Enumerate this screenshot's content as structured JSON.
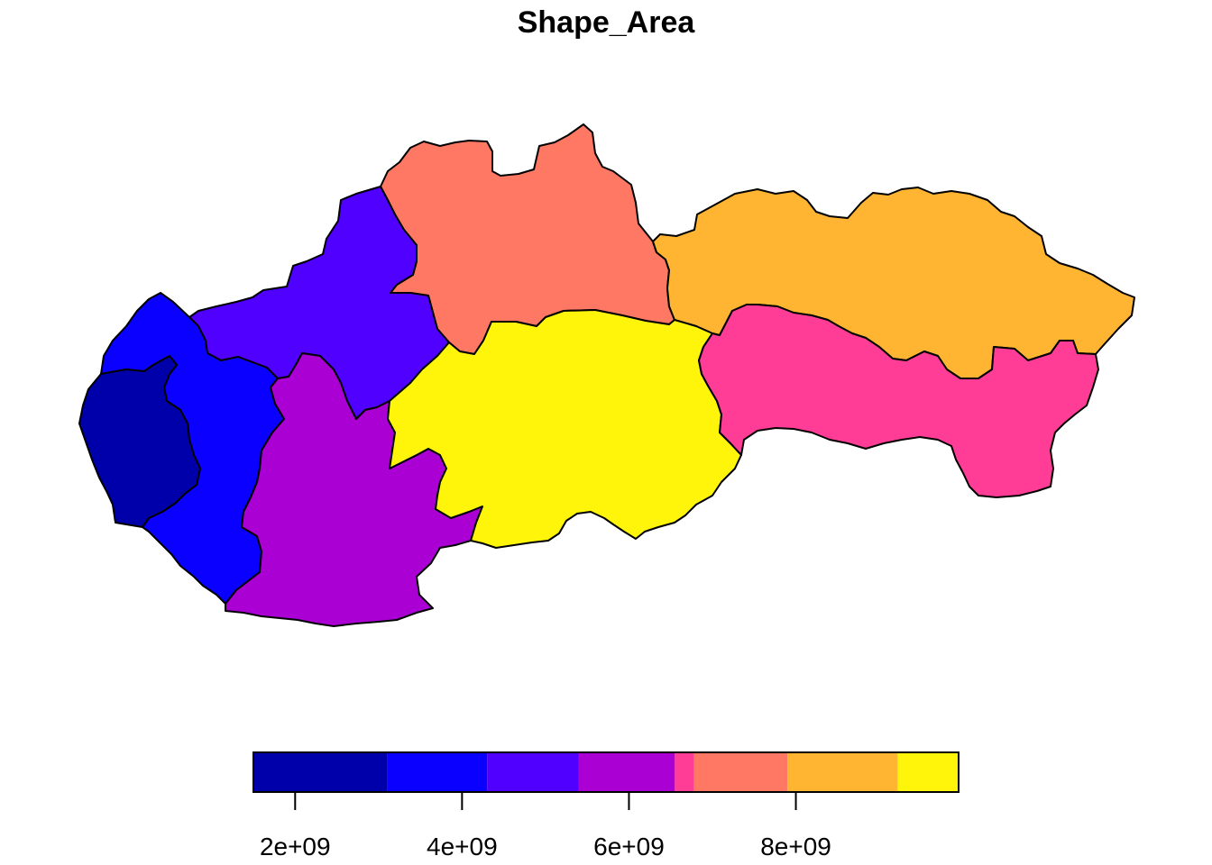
{
  "title": "Shape_Area",
  "regions": [
    {
      "id": "bratislava",
      "value": 2052000000,
      "color": "#0000AA"
    },
    {
      "id": "trnava",
      "value": 4148000000,
      "color": "#0A00FF"
    },
    {
      "id": "trencin",
      "value": 4502000000,
      "color": "#5000FF"
    },
    {
      "id": "nitra",
      "value": 6344000000,
      "color": "#AA00D4"
    },
    {
      "id": "zilina",
      "value": 6809000000,
      "color": "#FF7864"
    },
    {
      "id": "kosice",
      "value": 6755000000,
      "color": "#FF3C96"
    },
    {
      "id": "presov",
      "value": 8973000000,
      "color": "#FFB432"
    },
    {
      "id": "banska-bystrica",
      "value": 9455000000,
      "color": "#FFF50A"
    }
  ],
  "legend": {
    "breaks": [
      1500000000.0,
      3100000000.0,
      4300000000.0,
      5400000000.0,
      6550000000.0,
      6780000000.0,
      7900000000.0,
      9220000000.0,
      9950000000.0
    ],
    "colors": [
      "#0000AA",
      "#0A00FF",
      "#5000FF",
      "#AA00D4",
      "#FF3C96",
      "#FF7864",
      "#FFB432",
      "#FFF50A"
    ],
    "ticks": [
      2000000000.0,
      4000000000.0,
      6000000000.0,
      8000000000.0
    ],
    "tick_labels": [
      "2e+09",
      "4e+09",
      "6e+09",
      "8e+09"
    ]
  }
}
